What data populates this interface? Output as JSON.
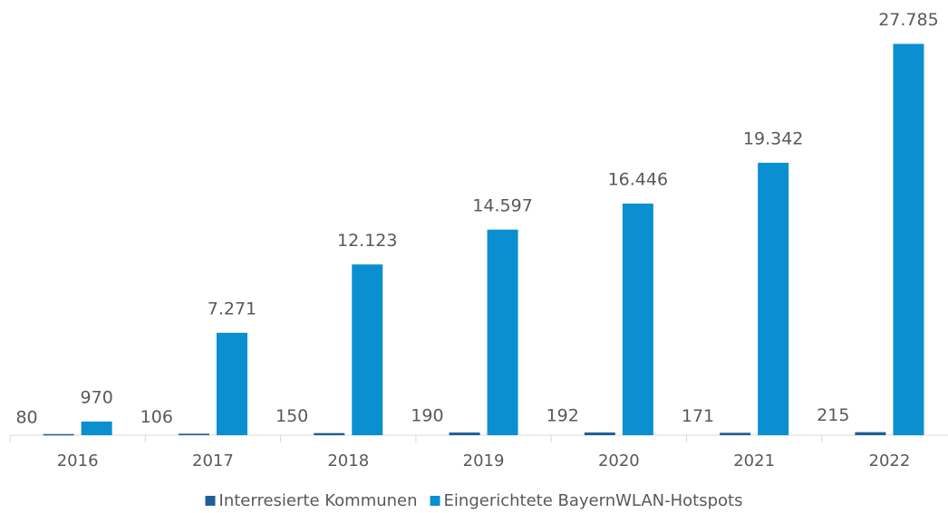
{
  "chart_data": {
    "type": "bar",
    "categories": [
      "2016",
      "2017",
      "2018",
      "2019",
      "2020",
      "2021",
      "2022"
    ],
    "series": [
      {
        "name": "Interresierte Kommunen",
        "color": "#1f5f97",
        "values": [
          80,
          106,
          150,
          190,
          192,
          171,
          215
        ]
      },
      {
        "name": "Eingerichtete BayernWLAN-Hotspots",
        "color": "#0a8fd0",
        "values": [
          970,
          7271,
          12123,
          14597,
          16446,
          19342,
          27785
        ],
        "value_labels": [
          "970",
          "7.271",
          "12.123",
          "14.597",
          "16.446",
          "19.342",
          "27.785"
        ]
      }
    ],
    "ylim": [
      0,
      30000
    ],
    "grid": false,
    "legend": "bottom"
  }
}
